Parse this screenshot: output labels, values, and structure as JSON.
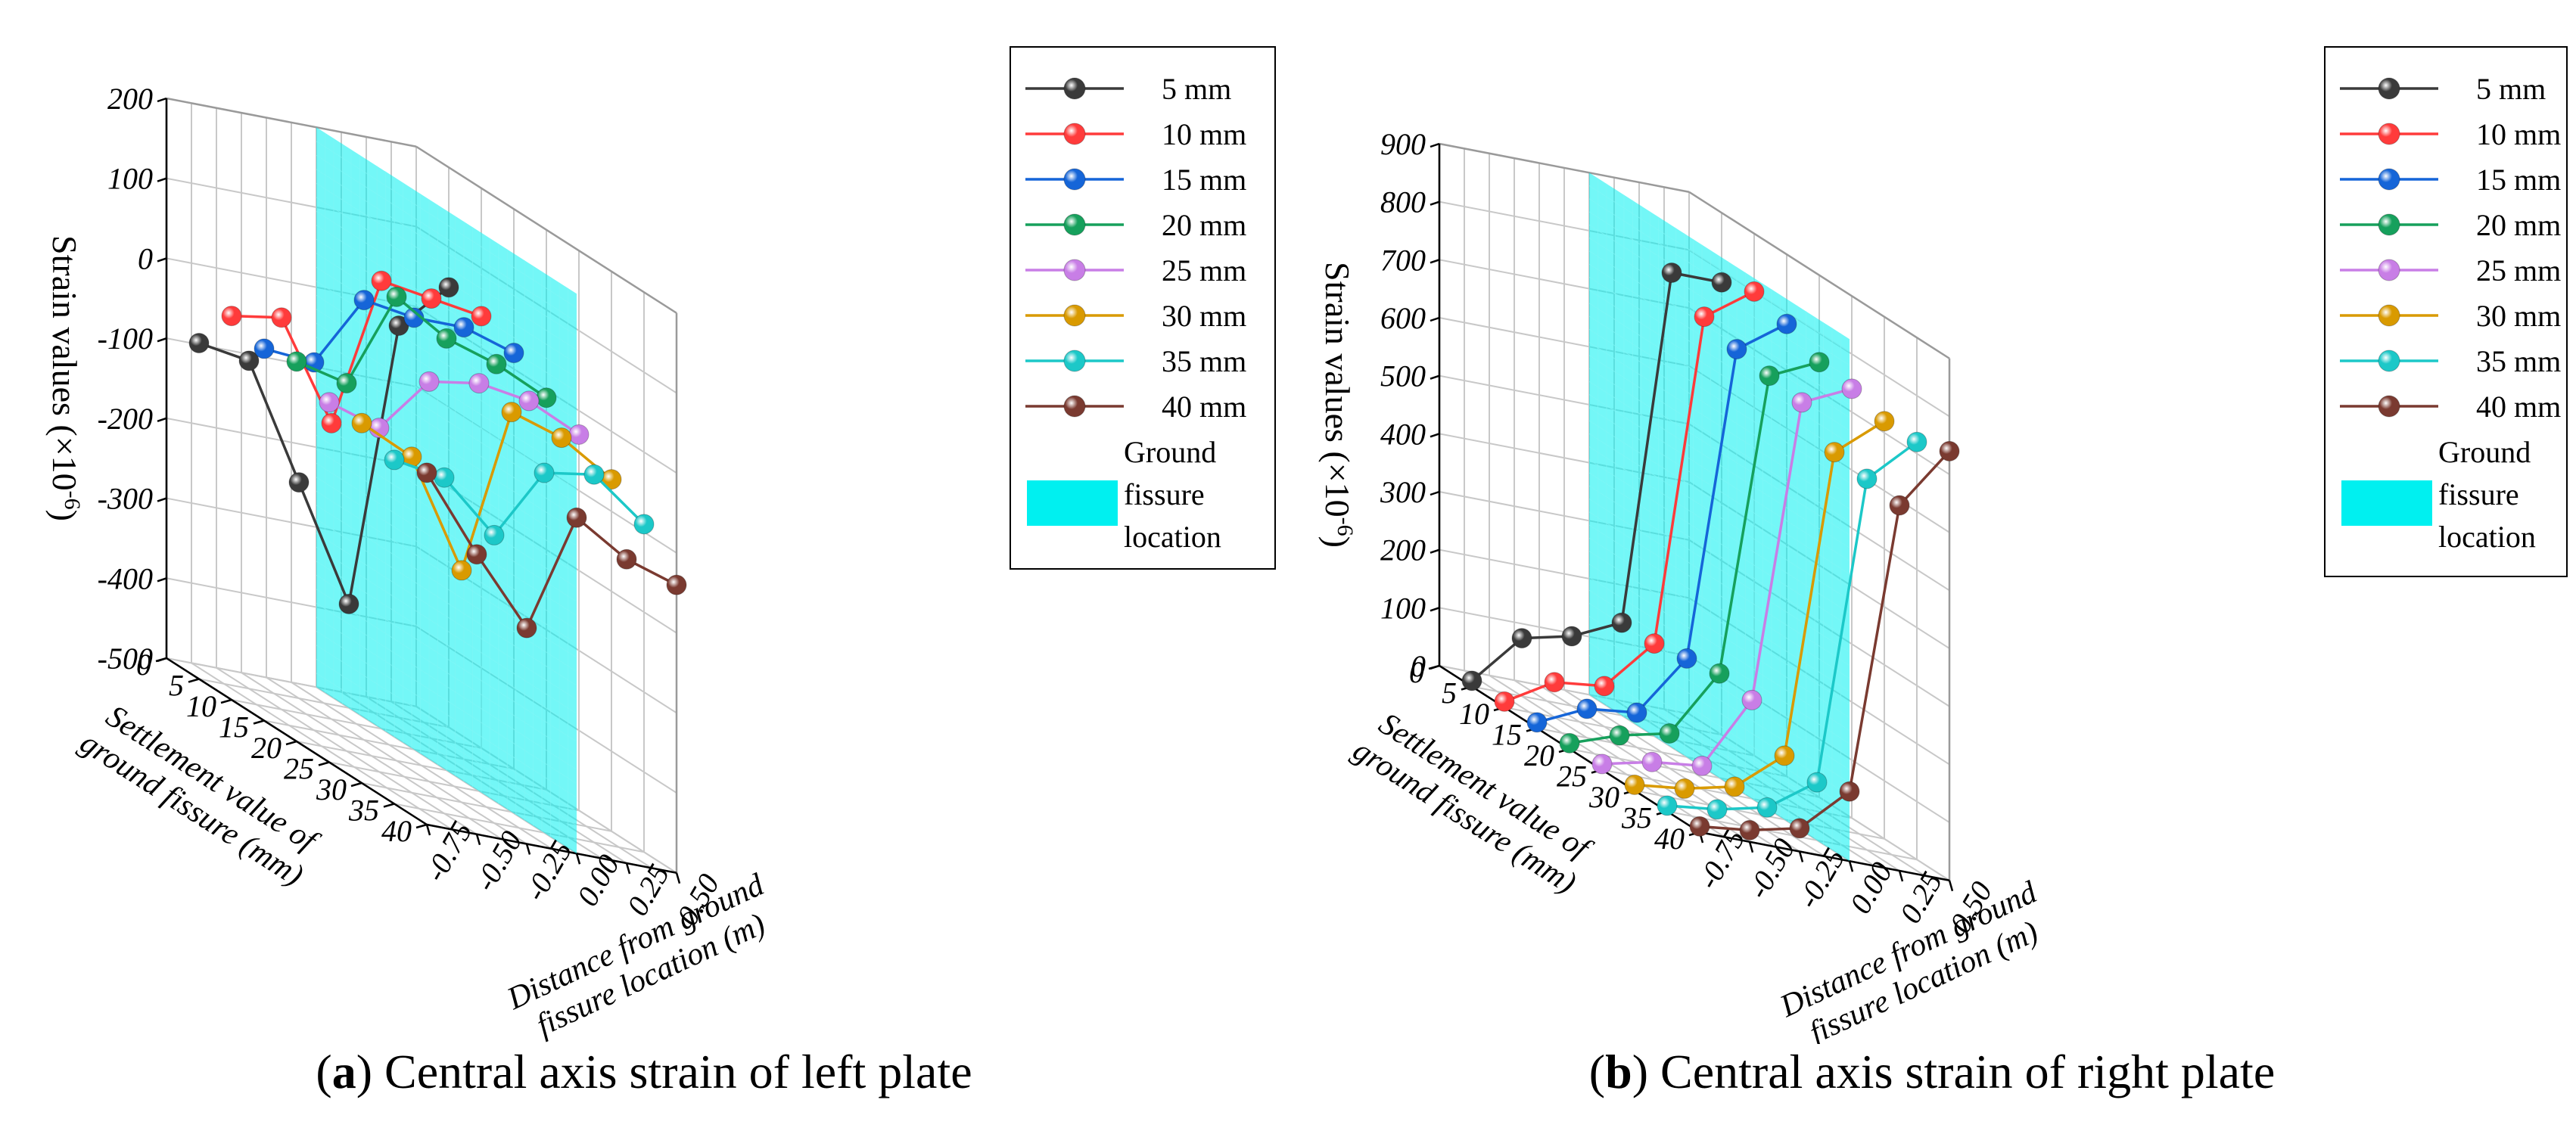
{
  "chart_data": [
    {
      "type": "scatter3d",
      "panel": "a",
      "title": "Central axis strain of left plate",
      "caption_letter": "a",
      "caption_text": "Central axis strain of left plate",
      "zlabel_main": "Strain values (×10",
      "zlabel_sup": "-6",
      "zlabel_end": ")",
      "xlabel_lines": [
        "Settlement value of",
        "ground fissure (mm)"
      ],
      "ylabel_lines": [
        "Distance from ground",
        "fissure location (m)"
      ],
      "zlim": [
        -500,
        200
      ],
      "z_ticks": [
        -500,
        -400,
        -300,
        -200,
        -100,
        0,
        100,
        200
      ],
      "z_tick_labels": [
        "-500",
        "-400",
        "-300",
        "-200",
        "-100",
        "0",
        "100",
        "200"
      ],
      "settlement_ticks": [
        0,
        5,
        10,
        15,
        20,
        25,
        30,
        35,
        40
      ],
      "settlement_tick_labels": [
        "0",
        "5",
        "10",
        "15",
        "20",
        "25",
        "30",
        "35",
        "40"
      ],
      "distance_ticks": [
        -0.75,
        -0.5,
        -0.25,
        0,
        0.25,
        0.5
      ],
      "distance_tick_labels": [
        "-0.75",
        "-0.50",
        "-0.25",
        "0.00",
        "0.25",
        "0.50"
      ],
      "distances": [
        -0.75,
        -0.5,
        -0.25,
        0,
        0.25,
        0.5
      ],
      "fissure_plane_distance": 0,
      "series": [
        {
          "name": "5 mm",
          "settlement": 5,
          "color": "#3a3a3a",
          "values": [
            -80,
            -90,
            -230,
            -370,
            -10,
            50
          ]
        },
        {
          "name": "10 mm",
          "settlement": 10,
          "color": "#ff3b3b",
          "values": [
            -20,
            -10,
            -130,
            60,
            50,
            40
          ]
        },
        {
          "name": "15 mm",
          "settlement": 15,
          "color": "#1565d8",
          "values": [
            -35,
            -40,
            50,
            40,
            40,
            20
          ]
        },
        {
          "name": "20 mm",
          "settlement": 20,
          "color": "#16a05c",
          "values": [
            -25,
            -40,
            80,
            40,
            20,
            -10
          ]
        },
        {
          "name": "25 mm",
          "settlement": 25,
          "color": "#c87ee6",
          "values": [
            -50,
            -70,
            0,
            10,
            0,
            -30
          ]
        },
        {
          "name": "30 mm",
          "settlement": 30,
          "color": "#d99a00",
          "values": [
            -50,
            -80,
            -210,
            0,
            -20,
            -60
          ]
        },
        {
          "name": "35 mm",
          "settlement": 35,
          "color": "#1cc8c8",
          "values": [
            -70,
            -80,
            -140,
            -50,
            -40,
            -90
          ]
        },
        {
          "name": "40 mm",
          "settlement": 40,
          "color": "#7a3a30",
          "values": [
            -60,
            -150,
            -230,
            -80,
            -120,
            -140
          ]
        }
      ],
      "legend_placement": "top-right",
      "legend_fissure_label": [
        "Ground",
        "fissure",
        "location"
      ],
      "fissure_color": "#00f0f0"
    },
    {
      "type": "scatter3d",
      "panel": "b",
      "title": "Central axis strain of right plate",
      "caption_letter": "b",
      "caption_text": "Central axis strain of right plate",
      "zlabel_main": "Strain values (×10",
      "zlabel_sup": "-6",
      "zlabel_end": ")",
      "xlabel_lines": [
        "Settlement value of",
        "ground fissure (mm)"
      ],
      "ylabel_lines": [
        "Distance from ground",
        "fissure location (m)"
      ],
      "zlim": [
        0,
        900
      ],
      "z_ticks": [
        0,
        100,
        200,
        300,
        400,
        500,
        600,
        700,
        800,
        900
      ],
      "z_tick_labels": [
        "0",
        "100",
        "200",
        "300",
        "400",
        "500",
        "600",
        "700",
        "800",
        "900"
      ],
      "settlement_ticks": [
        0,
        5,
        10,
        15,
        20,
        25,
        30,
        35,
        40
      ],
      "settlement_tick_labels": [
        "0",
        "5",
        "10",
        "15",
        "20",
        "25",
        "30",
        "35",
        "40"
      ],
      "distance_ticks": [
        -0.75,
        -0.5,
        -0.25,
        0,
        0.25,
        0.5
      ],
      "distance_tick_labels": [
        "-0.75",
        "-0.50",
        "-0.25",
        "0.00",
        "0.25",
        "0.50"
      ],
      "distances": [
        -0.75,
        -0.5,
        -0.25,
        0,
        0.25,
        0.5
      ],
      "fissure_plane_distance": 0,
      "series": [
        {
          "name": "5 mm",
          "settlement": 5,
          "color": "#3a3a3a",
          "values": [
            10,
            100,
            120,
            160,
            780,
            780
          ]
        },
        {
          "name": "10 mm",
          "settlement": 10,
          "color": "#ff3b3b",
          "values": [
            10,
            60,
            70,
            160,
            740,
            800
          ]
        },
        {
          "name": "15 mm",
          "settlement": 15,
          "color": "#1565d8",
          "values": [
            10,
            50,
            60,
            170,
            720,
            780
          ]
        },
        {
          "name": "20 mm",
          "settlement": 20,
          "color": "#16a05c",
          "values": [
            10,
            40,
            60,
            180,
            710,
            750
          ]
        },
        {
          "name": "25 mm",
          "settlement": 25,
          "color": "#c87ee6",
          "values": [
            10,
            30,
            40,
            170,
            700,
            740
          ]
        },
        {
          "name": "30 mm",
          "settlement": 30,
          "color": "#d99a00",
          "values": [
            10,
            20,
            40,
            110,
            650,
            720
          ]
        },
        {
          "name": "35 mm",
          "settlement": 35,
          "color": "#1cc8c8",
          "values": [
            10,
            20,
            40,
            100,
            640,
            720
          ]
        },
        {
          "name": "40 mm",
          "settlement": 40,
          "color": "#7a3a30",
          "values": [
            10,
            20,
            40,
            120,
            630,
            740
          ]
        }
      ],
      "legend_placement": "top-right",
      "legend_fissure_label": [
        "Ground",
        "fissure",
        "location"
      ],
      "fissure_color": "#00f0f0"
    }
  ]
}
